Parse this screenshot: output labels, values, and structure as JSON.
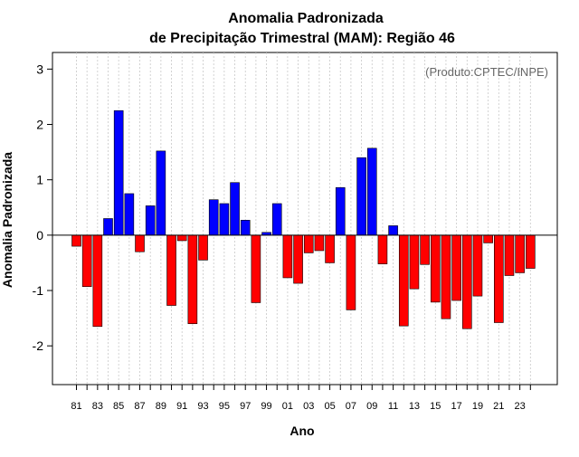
{
  "chart_data": {
    "type": "bar",
    "title_line1": "Anomalia Padronizada",
    "title_line2": "de Precipitação Trimestral (MAM): Região 46",
    "credit": "(Produto:CPTEC/INPE)",
    "xlabel": "Ano",
    "ylabel": "Anomalia Padronizada",
    "ylim": [
      -2.7,
      3.3
    ],
    "yticks": [
      -2,
      -1,
      0,
      1,
      2,
      3
    ],
    "x_tick_labels": [
      "81",
      "83",
      "85",
      "87",
      "89",
      "91",
      "93",
      "95",
      "97",
      "99",
      "01",
      "03",
      "05",
      "07",
      "09",
      "11",
      "13",
      "15",
      "17",
      "19",
      "21",
      "23"
    ],
    "grid": true,
    "years": [
      1981,
      1982,
      1983,
      1984,
      1985,
      1986,
      1987,
      1988,
      1989,
      1990,
      1991,
      1992,
      1993,
      1994,
      1995,
      1996,
      1997,
      1998,
      1999,
      2000,
      2001,
      2002,
      2003,
      2004,
      2005,
      2006,
      2007,
      2008,
      2009,
      2010,
      2011,
      2012,
      2013,
      2014,
      2015,
      2016,
      2017,
      2018,
      2019,
      2020,
      2021,
      2022,
      2023,
      2024
    ],
    "values": [
      -0.2,
      -0.93,
      -1.65,
      0.3,
      2.25,
      0.75,
      -0.3,
      0.53,
      1.52,
      -1.27,
      -0.1,
      -1.6,
      -0.45,
      0.64,
      0.57,
      0.95,
      0.27,
      -1.22,
      0.05,
      0.57,
      -0.77,
      -0.87,
      -0.32,
      -0.28,
      -0.5,
      0.86,
      -1.35,
      1.4,
      1.57,
      -0.52,
      0.17,
      -1.64,
      -0.97,
      -0.53,
      -1.21,
      -1.51,
      -1.18,
      -1.69,
      -1.1,
      -0.14,
      -1.58,
      -0.73,
      -0.68,
      -0.6
    ],
    "colors": {
      "positive": "#0000ff",
      "negative": "#ff0000",
      "grid": "#c8c8c8",
      "axis": "#000000",
      "credit": "#666666"
    }
  }
}
